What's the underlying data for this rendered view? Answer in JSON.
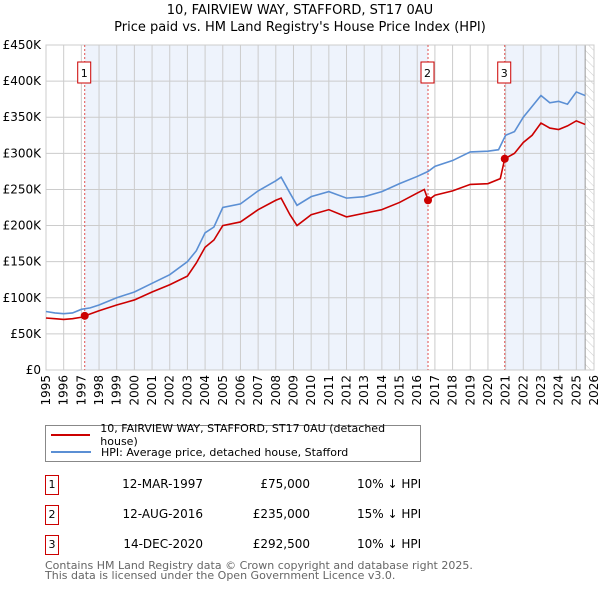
{
  "title": "10, FAIRVIEW WAY, STAFFORD, ST17 0AU",
  "subtitle": "Price paid vs. HM Land Registry's House Price Index (HPI)",
  "chart_data": {
    "type": "line",
    "title": "10, FAIRVIEW WAY, STAFFORD, ST17 0AU — Price paid vs. HM Land Registry's House Price Index (HPI)",
    "xlim": [
      1995,
      2026
    ],
    "ylim": [
      0,
      450000
    ],
    "yticks": [
      0,
      50000,
      100000,
      150000,
      200000,
      250000,
      300000,
      350000,
      400000,
      450000
    ],
    "ytick_labels": [
      "£0",
      "£50K",
      "£100K",
      "£150K",
      "£200K",
      "£250K",
      "£300K",
      "£350K",
      "£400K",
      "£450K"
    ],
    "xticks": [
      "1995",
      "1996",
      "1997",
      "1998",
      "1999",
      "2000",
      "2001",
      "2002",
      "2003",
      "2004",
      "2005",
      "2006",
      "2007",
      "2008",
      "2009",
      "2010",
      "2011",
      "2012",
      "2013",
      "2014",
      "2015",
      "2016",
      "2017",
      "2018",
      "2019",
      "2020",
      "2021",
      "2022",
      "2023",
      "2024",
      "2025",
      "2026"
    ],
    "grid": true,
    "legend_position": "below",
    "series": [
      {
        "name": "10, FAIRVIEW WAY, STAFFORD, ST17 0AU (detached house)",
        "color": "#cc0000",
        "x": [
          1995,
          1995.5,
          1996,
          1996.5,
          1997,
          1997.2,
          1998,
          1999,
          2000,
          2001,
          2002,
          2003,
          2003.5,
          2004,
          2004.5,
          2005,
          2006,
          2007,
          2008,
          2008.3,
          2008.8,
          2009.2,
          2010,
          2011,
          2012,
          2013,
          2014,
          2015,
          2016,
          2016.4,
          2016.62,
          2017,
          2018,
          2019,
          2020,
          2020.7,
          2020.95,
          2021.5,
          2022,
          2022.5,
          2023,
          2023.5,
          2024,
          2024.5,
          2025,
          2025.5
        ],
        "y": [
          72000,
          71000,
          70000,
          71000,
          73000,
          75000,
          82000,
          90000,
          97000,
          108000,
          118000,
          130000,
          148000,
          170000,
          180000,
          200000,
          205000,
          222000,
          235000,
          238000,
          215000,
          200000,
          215000,
          222000,
          212000,
          217000,
          222000,
          232000,
          245000,
          250000,
          235000,
          242000,
          248000,
          257000,
          258000,
          265000,
          292500,
          300000,
          315000,
          325000,
          342000,
          335000,
          333000,
          338000,
          345000,
          340000
        ]
      },
      {
        "name": "HPI: Average price, detached house, Stafford",
        "color": "#5b8fd4",
        "x": [
          1995,
          1995.5,
          1996,
          1996.5,
          1997,
          1997.5,
          1998,
          1999,
          2000,
          2001,
          2002,
          2003,
          2003.5,
          2004,
          2004.5,
          2005,
          2006,
          2007,
          2008,
          2008.3,
          2008.8,
          2009.2,
          2010,
          2011,
          2012,
          2013,
          2014,
          2015,
          2016,
          2016.62,
          2017,
          2018,
          2019,
          2020,
          2020.6,
          2021,
          2021.5,
          2022,
          2022.5,
          2023,
          2023.5,
          2024,
          2024.5,
          2025,
          2025.5
        ],
        "y": [
          81000,
          79000,
          78000,
          79000,
          84000,
          86000,
          90000,
          100000,
          108000,
          120000,
          132000,
          150000,
          165000,
          190000,
          198000,
          225000,
          230000,
          248000,
          262000,
          267000,
          245000,
          228000,
          240000,
          247000,
          238000,
          240000,
          247000,
          258000,
          268000,
          275000,
          282000,
          290000,
          302000,
          303000,
          305000,
          325000,
          330000,
          350000,
          365000,
          380000,
          370000,
          372000,
          368000,
          385000,
          380000
        ]
      }
    ],
    "sales": [
      {
        "label": "1",
        "date": "12-MAR-1997",
        "x": 1997.19,
        "price": 75000,
        "price_text": "£75,000",
        "hpi": "10% ↓ HPI"
      },
      {
        "label": "2",
        "date": "12-AUG-2016",
        "x": 2016.61,
        "price": 235000,
        "price_text": "£235,000",
        "hpi": "15% ↓ HPI"
      },
      {
        "label": "3",
        "date": "14-DEC-2020",
        "x": 2020.95,
        "price": 292500,
        "price_text": "£292,500",
        "hpi": "10% ↓ HPI"
      }
    ],
    "data_end": 2025.5
  },
  "legend": {
    "property": "10, FAIRVIEW WAY, STAFFORD, ST17 0AU (detached house)",
    "hpi": "HPI: Average price, detached house, Stafford"
  },
  "footer": {
    "line1": "Contains HM Land Registry data © Crown copyright and database right 2025.",
    "line2": "This data is licensed under the Open Government Licence v3.0."
  }
}
